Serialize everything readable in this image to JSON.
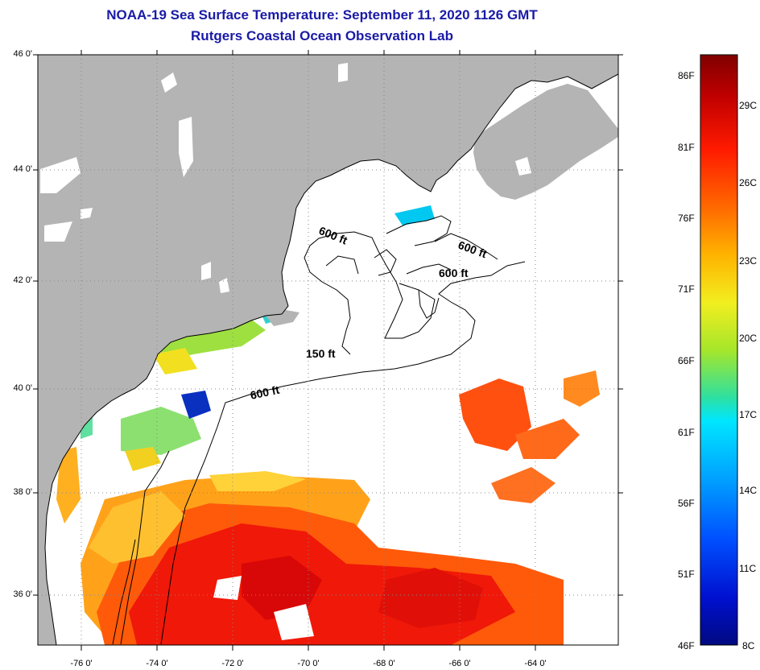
{
  "title": {
    "line1": "NOAA-19 Sea Surface Temperature:  September 11, 2020 1126 GMT",
    "line2": "Rutgers Coastal Ocean Observation Lab"
  },
  "map": {
    "lat_labels": [
      "46 0'",
      "44 0'",
      "42 0'",
      "40 0'",
      "38 0'",
      "36 0'"
    ],
    "lon_labels": [
      "-76 0'",
      "-74 0'",
      "-72 0'",
      "-70 0'",
      "-68 0'",
      "-66 0'",
      "-64 0'"
    ],
    "contour_labels": [
      "600 ft",
      "600 ft",
      "600 ft",
      "150 ft",
      "600 ft"
    ],
    "land_color": "#b4b4b4",
    "no_data_color": "#ffffff"
  },
  "colorbar": {
    "fahrenheit_labels": [
      "86F",
      "81F",
      "76F",
      "71F",
      "66F",
      "61F",
      "56F",
      "51F",
      "46F"
    ],
    "celsius_labels": [
      "29C",
      "26C",
      "23C",
      "20C",
      "17C",
      "14C",
      "11C",
      "8C"
    ],
    "colors": [
      "#800000",
      "#d40000",
      "#ff3a00",
      "#ff8c00",
      "#ffd000",
      "#e6f21c",
      "#8ee62a",
      "#1de2b8",
      "#00e6ff",
      "#00a8ff",
      "#0060ff",
      "#0018e0",
      "#000a90"
    ]
  }
}
